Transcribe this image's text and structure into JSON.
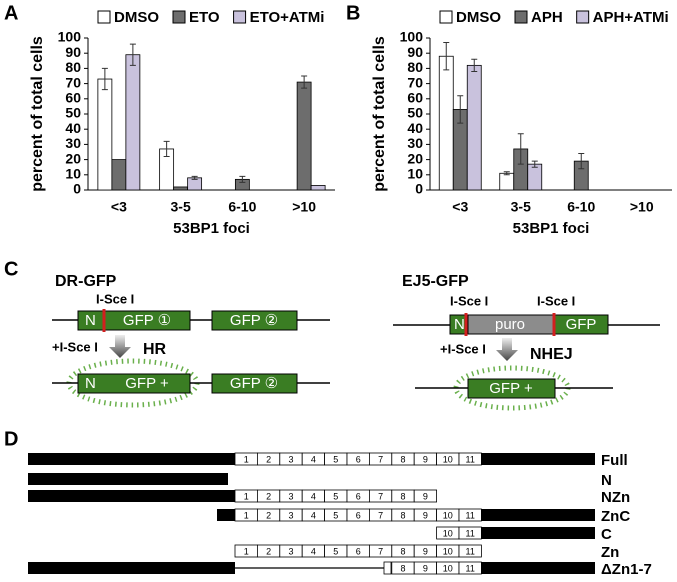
{
  "chart_data": [
    {
      "type": "bar",
      "panel": "A",
      "ylabel": "percent of total cells",
      "xlabel": "53BP1 foci",
      "categories": [
        "<3",
        "3-5",
        "6-10",
        ">10"
      ],
      "series": [
        {
          "name": "DMSO",
          "color": "#ffffff",
          "values": [
            73,
            27,
            0,
            0
          ],
          "errors": [
            7,
            5,
            null,
            null
          ]
        },
        {
          "name": "ETO",
          "color": "#6d6d6d",
          "values": [
            20,
            2,
            7,
            71
          ],
          "errors": [
            null,
            null,
            2,
            4
          ]
        },
        {
          "name": "ETO+ATMi",
          "color": "#c9c2dd",
          "values": [
            89,
            8,
            0,
            3
          ],
          "errors": [
            7,
            1,
            null,
            null
          ]
        }
      ],
      "ylim": [
        0,
        100
      ],
      "yticks": [
        0,
        10,
        20,
        30,
        40,
        50,
        60,
        70,
        80,
        90,
        100
      ]
    },
    {
      "type": "bar",
      "panel": "B",
      "ylabel": "percent of total cells",
      "xlabel": "53BP1 foci",
      "categories": [
        "<3",
        "3-5",
        "6-10",
        ">10"
      ],
      "series": [
        {
          "name": "DMSO",
          "color": "#ffffff",
          "values": [
            88,
            11,
            0,
            0
          ],
          "errors": [
            9,
            1,
            null,
            null
          ]
        },
        {
          "name": "APH",
          "color": "#6d6d6d",
          "values": [
            53,
            27,
            19,
            0
          ],
          "errors": [
            9,
            10,
            5,
            null
          ]
        },
        {
          "name": "APH+ATMi",
          "color": "#c9c2dd",
          "values": [
            82,
            17,
            0,
            0
          ],
          "errors": [
            4,
            2,
            null,
            null
          ]
        }
      ],
      "ylim": [
        0,
        100
      ],
      "yticks": [
        0,
        10,
        20,
        30,
        40,
        50,
        60,
        70,
        80,
        90,
        100
      ]
    }
  ],
  "panel_c": {
    "panel": "C",
    "dr": {
      "title": "DR-GFP",
      "site": "I-Sce I",
      "n": "N",
      "gfp1": "GFP ①",
      "gfp2": "GFP ②",
      "enzyme": "+I-Sce I",
      "outcome": "HR",
      "n2": "N",
      "gfp_plus": "GFP +",
      "gfp2b": "GFP ②"
    },
    "ej": {
      "title": "EJ5-GFP",
      "site1": "I-Sce I",
      "site2": "I-Sce I",
      "n": "N",
      "puro": "puro",
      "gfp": "GFP",
      "enzyme": "+I-Sce I",
      "outcome": "NHEJ",
      "gfp_plus": "GFP +"
    }
  },
  "panel_d": {
    "panel": "D",
    "rows": [
      {
        "label": "Full",
        "domains": [
          1,
          2,
          3,
          4,
          5,
          6,
          7,
          8,
          9,
          10,
          11
        ]
      },
      {
        "label": "N",
        "domains": []
      },
      {
        "label": "NZn",
        "domains": [
          1,
          2,
          3,
          4,
          5,
          6,
          7,
          8,
          9
        ]
      },
      {
        "label": "ZnC",
        "domains": [
          1,
          2,
          3,
          4,
          5,
          6,
          7,
          8,
          9,
          10,
          11
        ]
      },
      {
        "label": "C",
        "domains": [
          10,
          11
        ]
      },
      {
        "label": "Zn",
        "domains": [
          1,
          2,
          3,
          4,
          5,
          6,
          7,
          8,
          9,
          10,
          11
        ]
      },
      {
        "label": "ΔZn1-7",
        "domains": [
          8,
          9,
          10,
          11
        ]
      }
    ]
  }
}
